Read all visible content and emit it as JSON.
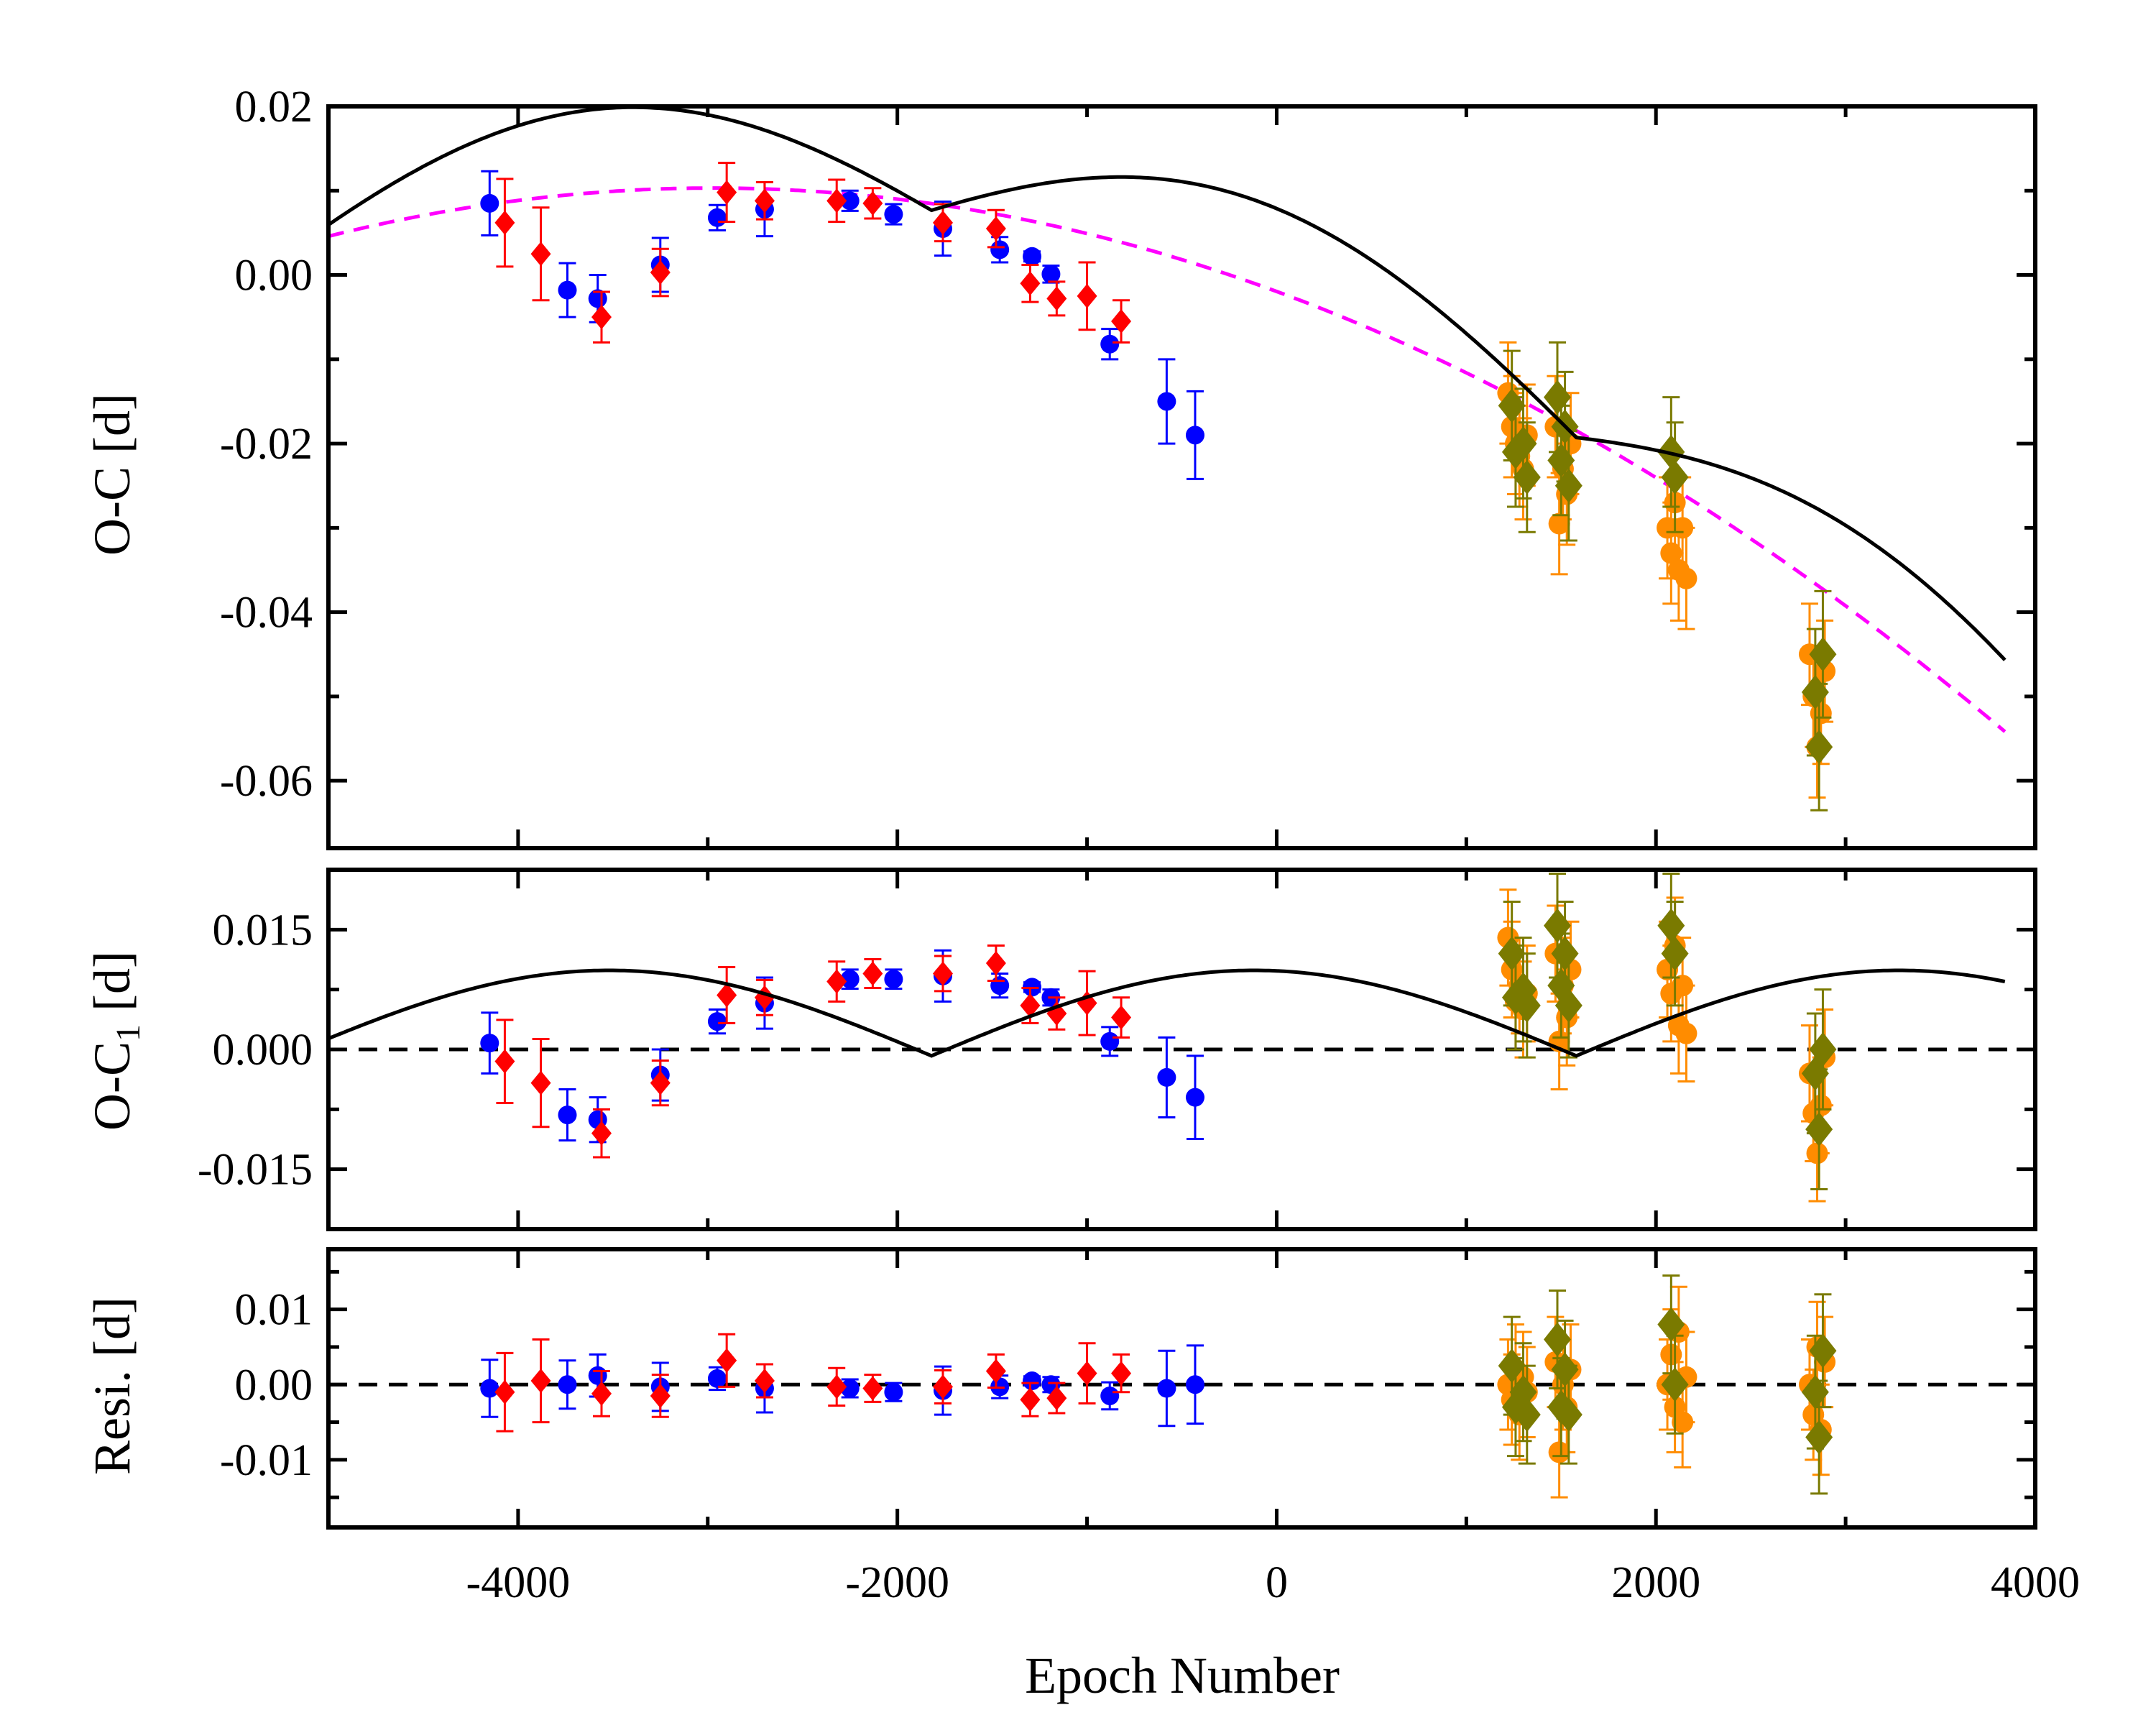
{
  "chart_data": {
    "type": "scatter",
    "shared_x": {
      "label": "Epoch Number",
      "range": [
        -5000,
        4000
      ],
      "ticks": [
        -4000,
        -2000,
        0,
        2000,
        4000
      ],
      "tick_labels": [
        "-4000",
        "-2000",
        "0",
        "2000",
        "4000"
      ]
    },
    "colors": {
      "blue": "#0000ff",
      "red": "#ff0000",
      "orange": "#ff8c00",
      "olive": "#7a7a00",
      "fit": "#000000",
      "quadratic": "#ff00ff"
    },
    "panels": [
      {
        "id": "oc",
        "ylabel": "O-C [d]",
        "ylim": [
          -0.068,
          0.02
        ],
        "yticks": [
          0.02,
          0.0,
          -0.02,
          -0.04,
          -0.06
        ],
        "ytick_labels": [
          "0.02",
          "0.00",
          "-0.02",
          "-0.04",
          "-0.06"
        ],
        "series": [
          {
            "name": "blue-circles",
            "marker": "circle",
            "color": "#0000ff",
            "x": [
              -4150,
              -3740,
              -3580,
              -3250,
              -2950,
              -2700,
              -2250,
              -2020,
              -1760,
              -1460,
              -1290,
              -1190,
              -880,
              -580,
              -430
            ],
            "y": [
              0.0085,
              -0.0018,
              -0.0028,
              0.0012,
              0.0068,
              0.0078,
              0.0088,
              0.0072,
              0.0055,
              0.003,
              0.0022,
              0.0001,
              -0.0082,
              -0.015,
              -0.019
            ],
            "err": [
              0.0038,
              0.0032,
              0.0028,
              0.0032,
              0.0015,
              0.0032,
              0.0012,
              0.0012,
              0.0032,
              0.0015,
              0.0006,
              0.001,
              0.0018,
              0.005,
              0.0052
            ]
          },
          {
            "name": "red-diamonds",
            "marker": "diamond",
            "color": "#ff0000",
            "x": [
              -4070,
              -3880,
              -3560,
              -3250,
              -2900,
              -2700,
              -2320,
              -2130,
              -1760,
              -1480,
              -1300,
              -1160,
              -1000,
              -820
            ],
            "y": [
              0.0062,
              0.0025,
              -0.005,
              0.0003,
              0.0098,
              0.0088,
              0.0088,
              0.0085,
              0.0062,
              0.0055,
              -0.001,
              -0.0028,
              -0.0025,
              -0.0055
            ],
            "err": [
              0.0052,
              0.0055,
              0.003,
              0.0028,
              0.0035,
              0.0022,
              0.0025,
              0.0018,
              0.0022,
              0.0022,
              0.0022,
              0.002,
              0.004,
              0.0025
            ]
          },
          {
            "name": "orange-circles",
            "marker": "circle",
            "color": "#ff8c00",
            "x": [
              1220,
              1240,
              1260,
              1280,
              1300,
              1320,
              1470,
              1490,
              1510,
              1530,
              1550,
              2060,
              2080,
              2100,
              2120,
              2140,
              2160,
              2810,
              2830,
              2850,
              2870,
              2890
            ],
            "y": [
              -0.014,
              -0.018,
              -0.02,
              -0.0215,
              -0.023,
              -0.019,
              -0.018,
              -0.0295,
              -0.023,
              -0.026,
              -0.02,
              -0.03,
              -0.033,
              -0.027,
              -0.035,
              -0.03,
              -0.036,
              -0.045,
              -0.05,
              -0.056,
              -0.052,
              -0.047
            ],
            "err": [
              0.006,
              0.006,
              0.006,
              0.006,
              0.006,
              0.006,
              0.006,
              0.006,
              0.006,
              0.006,
              0.006,
              0.006,
              0.006,
              0.006,
              0.006,
              0.006,
              0.006,
              0.006,
              0.006,
              0.006,
              0.006,
              0.006
            ]
          },
          {
            "name": "olive-diamonds",
            "marker": "diamond",
            "color": "#7a7a00",
            "x": [
              1240,
              1260,
              1300,
              1320,
              1480,
              1500,
              1520,
              1540,
              2080,
              2100,
              2840,
              2860,
              2880
            ],
            "y": [
              -0.0155,
              -0.021,
              -0.02,
              -0.024,
              -0.0145,
              -0.022,
              -0.018,
              -0.025,
              -0.021,
              -0.024,
              -0.0495,
              -0.056,
              -0.045
            ],
            "err": [
              0.0065,
              0.0065,
              0.0065,
              0.0065,
              0.0065,
              0.0065,
              0.0065,
              0.0065,
              0.0065,
              0.0065,
              0.0075,
              0.0075,
              0.0075
            ]
          }
        ],
        "fit_curve": {
          "name": "quadratic-plus-lite",
          "color": "#000000",
          "style": "solid"
        },
        "quadratic_curve": {
          "name": "quadratic-trend",
          "color": "#ff00ff",
          "style": "dashed"
        }
      },
      {
        "id": "oc1",
        "ylabel_main": "O-C",
        "ylabel_sub": "1",
        "ylabel_unit": " [d]",
        "ylim": [
          -0.0225,
          0.0225
        ],
        "yticks": [
          0.015,
          0.0,
          -0.015
        ],
        "ytick_labels": [
          "0.015",
          "0.000",
          "-0.015"
        ],
        "zero_line": true,
        "series": [
          {
            "name": "blue-circles",
            "marker": "circle",
            "color": "#0000ff",
            "x": [
              -4150,
              -3740,
              -3580,
              -3250,
              -2950,
              -2700,
              -2250,
              -2020,
              -1760,
              -1460,
              -1290,
              -1190,
              -880,
              -580,
              -430
            ],
            "y": [
              0.0008,
              -0.0082,
              -0.0088,
              -0.0032,
              0.0035,
              0.0058,
              0.0088,
              0.0088,
              0.0092,
              0.008,
              0.0078,
              0.0065,
              0.001,
              -0.0035,
              -0.006
            ],
            "err": [
              0.0038,
              0.0032,
              0.0028,
              0.0032,
              0.0015,
              0.0032,
              0.0012,
              0.0012,
              0.0032,
              0.0015,
              0.0006,
              0.001,
              0.0018,
              0.005,
              0.0052
            ]
          },
          {
            "name": "red-diamonds",
            "marker": "diamond",
            "color": "#ff0000",
            "x": [
              -4070,
              -3880,
              -3560,
              -3250,
              -2900,
              -2700,
              -2320,
              -2130,
              -1760,
              -1480,
              -1300,
              -1160,
              -1000,
              -820
            ],
            "y": [
              -0.0015,
              -0.0042,
              -0.0105,
              -0.0042,
              0.0068,
              0.0065,
              0.0085,
              0.0095,
              0.0095,
              0.0108,
              0.0055,
              0.0045,
              0.0058,
              0.004
            ],
            "err": [
              0.0052,
              0.0055,
              0.003,
              0.0028,
              0.0035,
              0.0022,
              0.0025,
              0.0018,
              0.0022,
              0.0022,
              0.0022,
              0.002,
              0.004,
              0.0025
            ]
          },
          {
            "name": "orange-circles",
            "marker": "circle",
            "color": "#ff8c00",
            "x": [
              1220,
              1240,
              1260,
              1280,
              1300,
              1320,
              1470,
              1490,
              1510,
              1530,
              1550,
              2060,
              2080,
              2100,
              2120,
              2140,
              2160,
              2810,
              2830,
              2850,
              2870,
              2890
            ],
            "y": [
              0.014,
              0.01,
              0.006,
              0.008,
              0.005,
              0.007,
              0.012,
              0.001,
              0.008,
              0.004,
              0.01,
              0.01,
              0.007,
              0.013,
              0.003,
              0.008,
              0.002,
              -0.003,
              -0.008,
              -0.013,
              -0.007,
              -0.001
            ],
            "err": [
              0.006,
              0.006,
              0.006,
              0.006,
              0.006,
              0.006,
              0.006,
              0.006,
              0.006,
              0.006,
              0.006,
              0.006,
              0.006,
              0.006,
              0.006,
              0.006,
              0.006,
              0.006,
              0.006,
              0.006,
              0.006,
              0.006
            ]
          },
          {
            "name": "olive-diamonds",
            "marker": "diamond",
            "color": "#7a7a00",
            "x": [
              1240,
              1260,
              1300,
              1320,
              1480,
              1500,
              1520,
              1540,
              2080,
              2100,
              2840,
              2860,
              2880
            ],
            "y": [
              0.012,
              0.0065,
              0.0075,
              0.0055,
              0.0155,
              0.008,
              0.012,
              0.0055,
              0.0155,
              0.012,
              -0.003,
              -0.01,
              0.0
            ],
            "err": [
              0.0065,
              0.0065,
              0.0065,
              0.0065,
              0.0065,
              0.0065,
              0.0065,
              0.0065,
              0.0065,
              0.0065,
              0.0075,
              0.0075,
              0.0075
            ]
          }
        ],
        "fit_curve": {
          "name": "lite-term",
          "color": "#000000",
          "style": "solid"
        }
      },
      {
        "id": "resi",
        "ylabel": "Resi. [d]",
        "ylim": [
          -0.019,
          0.018
        ],
        "yticks": [
          0.01,
          0.0,
          -0.01
        ],
        "ytick_labels": [
          "0.01",
          "0.00",
          "-0.01"
        ],
        "zero_line": true,
        "series": [
          {
            "name": "blue-circles",
            "marker": "circle",
            "color": "#0000ff",
            "x": [
              -4150,
              -3740,
              -3580,
              -3250,
              -2950,
              -2700,
              -2250,
              -2020,
              -1760,
              -1460,
              -1290,
              -1190,
              -880,
              -580,
              -430
            ],
            "y": [
              -0.0005,
              0.0,
              0.0012,
              -0.0003,
              0.0008,
              -0.0005,
              -0.0005,
              -0.001,
              -0.0008,
              -0.0003,
              0.0005,
              0.0,
              -0.0015,
              -0.0005,
              0.0
            ],
            "err": [
              0.0038,
              0.0032,
              0.0028,
              0.0032,
              0.0015,
              0.0032,
              0.0012,
              0.0012,
              0.0032,
              0.0015,
              0.0006,
              0.001,
              0.0018,
              0.005,
              0.0052
            ]
          },
          {
            "name": "red-diamonds",
            "marker": "diamond",
            "color": "#ff0000",
            "x": [
              -4070,
              -3880,
              -3560,
              -3250,
              -2900,
              -2700,
              -2320,
              -2130,
              -1760,
              -1480,
              -1300,
              -1160,
              -1000,
              -820
            ],
            "y": [
              -0.001,
              0.0005,
              -0.0012,
              -0.0015,
              0.0032,
              0.0005,
              -0.0003,
              -0.0005,
              -0.0003,
              0.0018,
              -0.002,
              -0.0018,
              0.0015,
              0.0015
            ],
            "err": [
              0.0052,
              0.0055,
              0.003,
              0.0028,
              0.0035,
              0.0022,
              0.0025,
              0.0018,
              0.0022,
              0.0022,
              0.0022,
              0.002,
              0.004,
              0.0025
            ]
          },
          {
            "name": "orange-circles",
            "marker": "circle",
            "color": "#ff8c00",
            "x": [
              1220,
              1240,
              1260,
              1280,
              1300,
              1320,
              1470,
              1490,
              1510,
              1530,
              1550,
              2060,
              2080,
              2100,
              2120,
              2140,
              2160,
              2810,
              2830,
              2850,
              2870,
              2890
            ],
            "y": [
              0.0,
              -0.002,
              0.002,
              -0.004,
              0.001,
              -0.001,
              0.003,
              -0.009,
              0.0,
              -0.003,
              0.002,
              0.0,
              0.004,
              -0.003,
              0.007,
              -0.005,
              0.001,
              0.0,
              -0.004,
              0.005,
              -0.006,
              0.003
            ],
            "err": [
              0.006,
              0.006,
              0.006,
              0.006,
              0.006,
              0.006,
              0.006,
              0.006,
              0.006,
              0.006,
              0.006,
              0.006,
              0.006,
              0.006,
              0.006,
              0.006,
              0.006,
              0.006,
              0.006,
              0.006,
              0.006,
              0.006
            ]
          },
          {
            "name": "olive-diamonds",
            "marker": "diamond",
            "color": "#7a7a00",
            "x": [
              1240,
              1260,
              1300,
              1320,
              1480,
              1500,
              1520,
              1540,
              2080,
              2100,
              2840,
              2860,
              2880
            ],
            "y": [
              0.0025,
              -0.003,
              -0.001,
              -0.004,
              0.006,
              -0.003,
              0.002,
              -0.004,
              0.008,
              0.0,
              -0.001,
              -0.007,
              0.0045
            ],
            "err": [
              0.0065,
              0.0065,
              0.0065,
              0.0065,
              0.0065,
              0.0065,
              0.0065,
              0.0065,
              0.0065,
              0.0065,
              0.0075,
              0.0075,
              0.0075
            ]
          }
        ]
      }
    ],
    "fit_model": {
      "lite_amplitude": 0.0107,
      "lite_offset": -0.0008,
      "period_epochs": 3400,
      "phase_zero_epoch": -3520,
      "quadratic": {
        "a": -1.39e-09,
        "b": -8.26e-06,
        "c": -0.00196
      }
    }
  }
}
